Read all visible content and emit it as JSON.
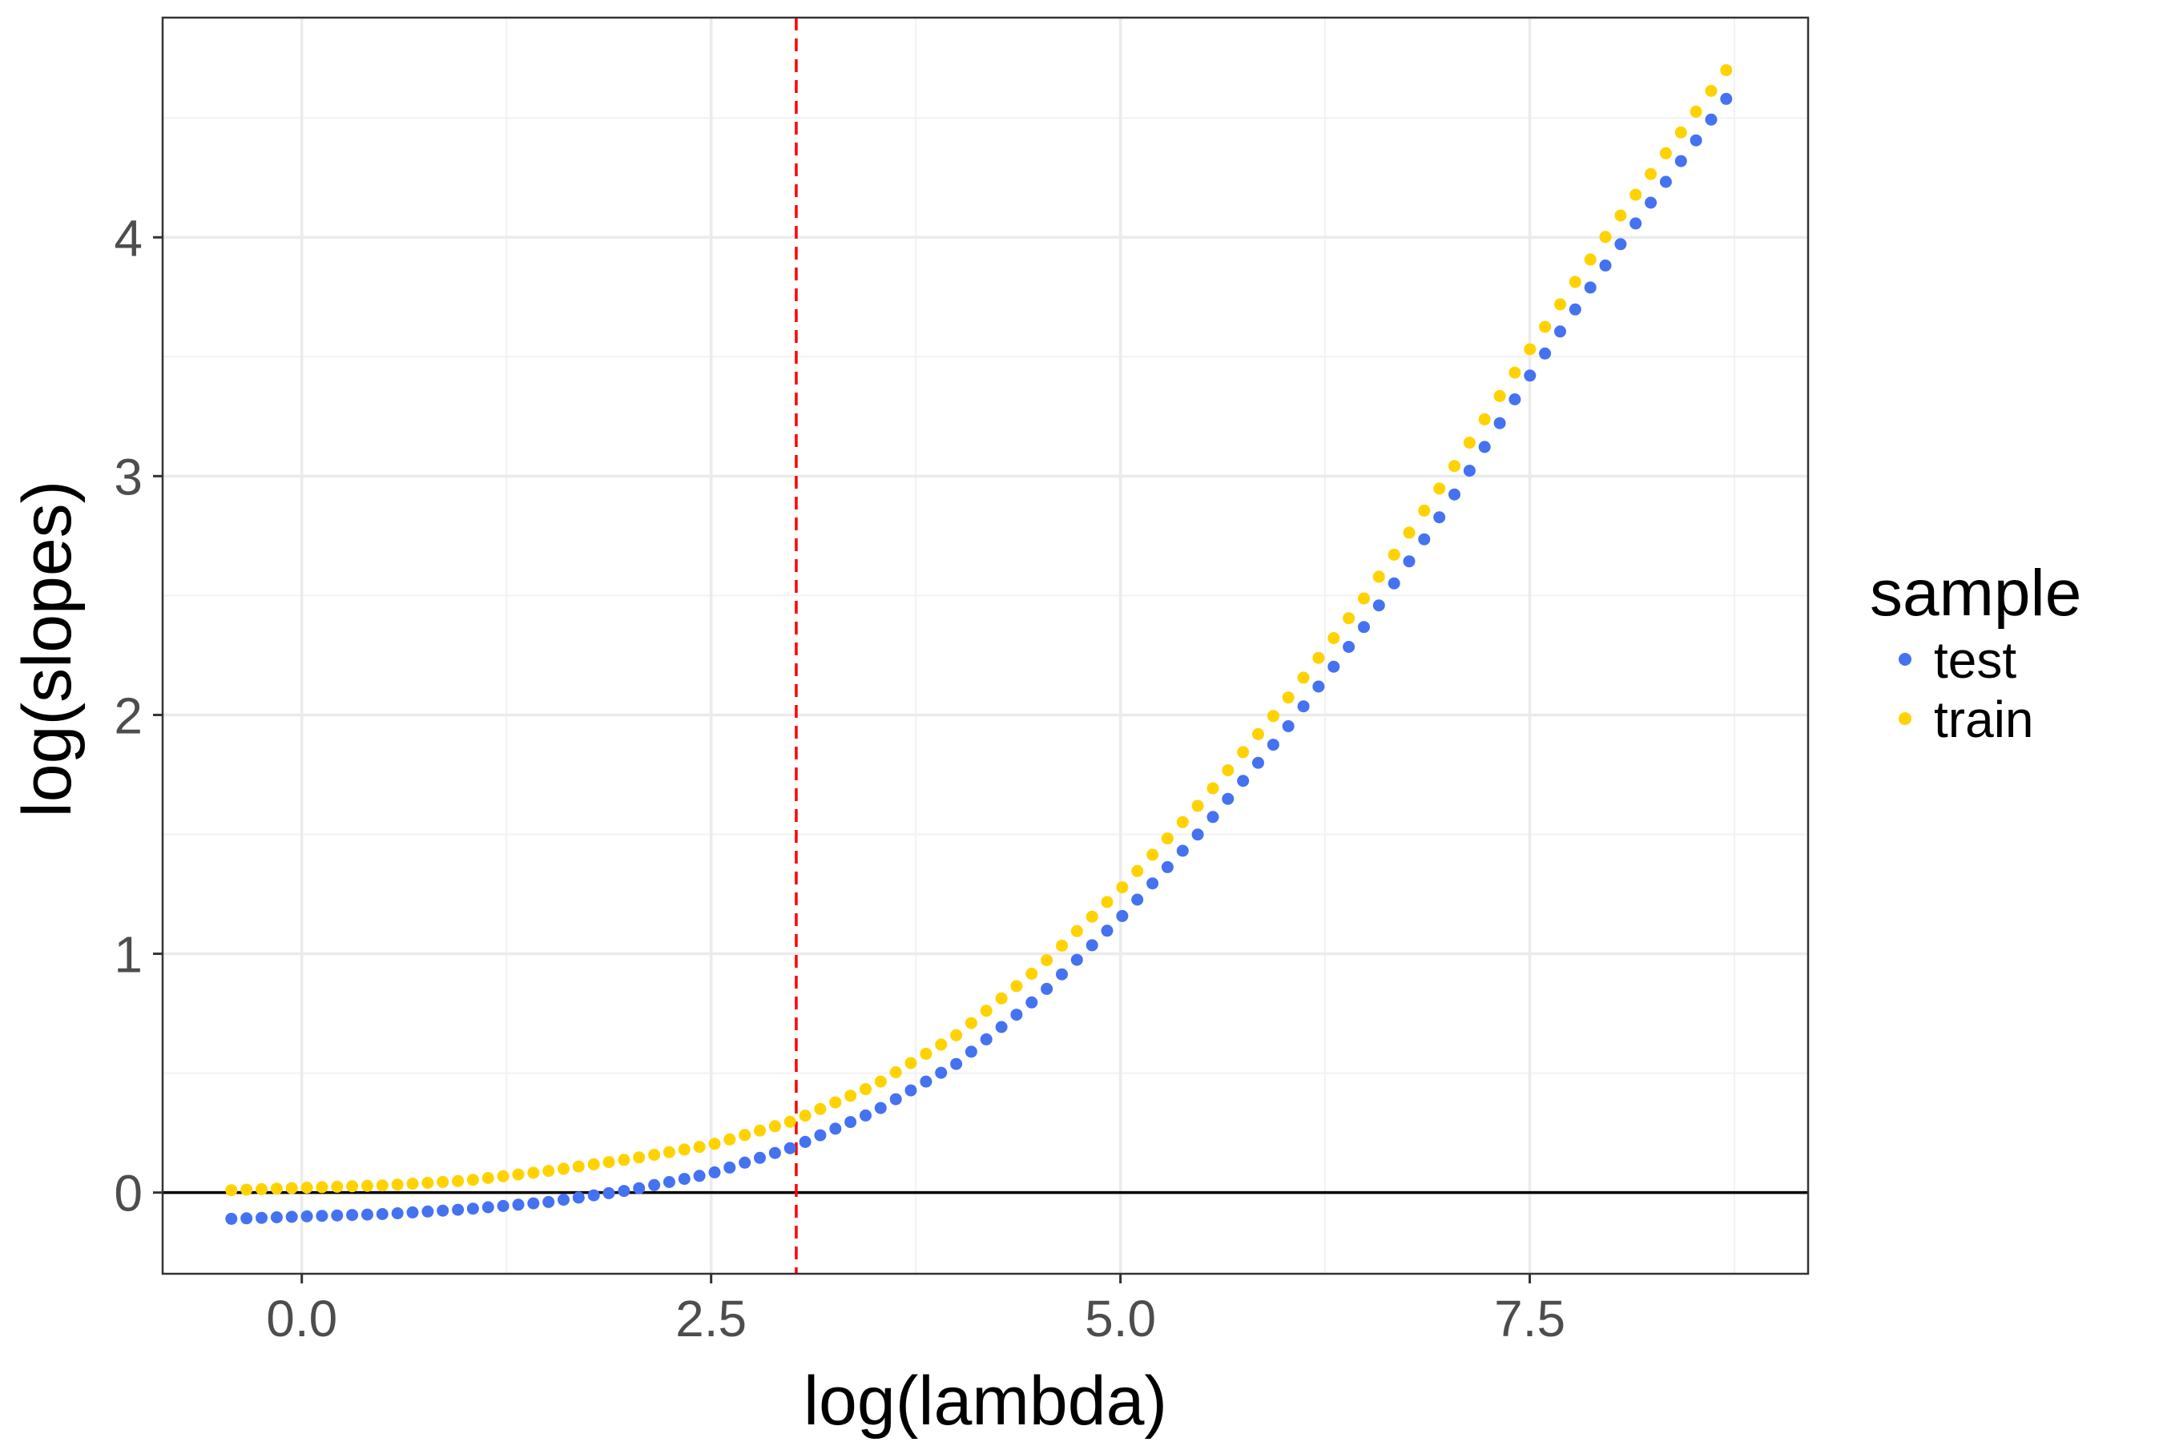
{
  "chart_data": {
    "type": "scatter",
    "xlabel": "log(lambda)",
    "ylabel": "log(slopes)",
    "xlim": [
      -0.85,
      9.2
    ],
    "ylim": [
      -0.34,
      4.92
    ],
    "x_ticks": [
      0.0,
      2.5,
      5.0,
      7.5
    ],
    "x_tick_labels": [
      "0.0",
      "2.5",
      "5.0",
      "7.5"
    ],
    "y_ticks": [
      0,
      1,
      2,
      3,
      4
    ],
    "y_tick_labels": [
      "0",
      "1",
      "2",
      "3",
      "4"
    ],
    "grid": true,
    "hline": {
      "y": 0,
      "color": "#000000"
    },
    "vline": {
      "x": 3.02,
      "color": "#ff0000",
      "style": "dashed"
    },
    "x_start": -0.43,
    "x_end": 8.7,
    "n_points": 100,
    "series": [
      {
        "name": "test",
        "color": "#4472f0",
        "knots_x": [
          -0.43,
          0.0,
          0.5,
          1.0,
          1.5,
          2.0,
          2.5,
          3.0,
          3.5,
          4.0,
          4.5,
          5.0,
          5.5,
          6.0,
          6.5,
          7.0,
          7.5,
          8.0,
          8.7
        ],
        "knots_y": [
          -0.11,
          -0.1,
          -0.09,
          -0.07,
          -0.04,
          0.01,
          0.08,
          0.19,
          0.34,
          0.54,
          0.82,
          1.15,
          1.52,
          1.93,
          2.38,
          2.88,
          3.42,
          3.92,
          4.58
        ]
      },
      {
        "name": "train",
        "color": "#ffd200",
        "knots_x": [
          -0.43,
          0.0,
          0.5,
          1.0,
          1.5,
          2.0,
          2.5,
          3.0,
          3.5,
          4.0,
          4.5,
          5.0,
          5.5,
          6.0,
          6.5,
          7.0,
          7.5,
          8.0,
          8.7
        ],
        "knots_y": [
          0.01,
          0.02,
          0.03,
          0.05,
          0.09,
          0.14,
          0.2,
          0.3,
          0.45,
          0.66,
          0.94,
          1.27,
          1.64,
          2.05,
          2.5,
          3.0,
          3.53,
          4.04,
          4.7
        ]
      }
    ],
    "legend": {
      "title": "sample",
      "position": "right",
      "entries": [
        "test",
        "train"
      ]
    }
  }
}
